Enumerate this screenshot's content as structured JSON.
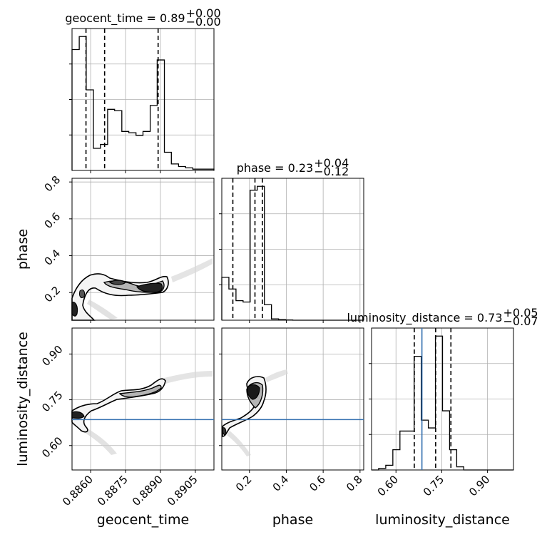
{
  "chart_data": {
    "type": "corner",
    "parameters": [
      "geocent_time",
      "phase",
      "luminosity_distance"
    ],
    "axis_ranges": {
      "geocent_time": [
        0.8852,
        0.8913
      ],
      "phase": [
        0.05,
        0.82
      ],
      "luminosity_distance": [
        0.52,
        0.985
      ]
    },
    "ticks": {
      "geocent_time": [
        "0.8860",
        "0.8875",
        "0.8890",
        "0.8905"
      ],
      "phase": [
        "0.2",
        "0.4",
        "0.6",
        "0.8"
      ],
      "luminosity_distance": [
        "0.60",
        "0.75",
        "0.90"
      ]
    },
    "tick_values": {
      "geocent_time": [
        0.886,
        0.8875,
        0.889,
        0.8905
      ],
      "phase": [
        0.2,
        0.4,
        0.6,
        0.8
      ],
      "luminosity_distance": [
        0.6,
        0.75,
        0.9
      ]
    },
    "titles": [
      {
        "param": "geocent_time",
        "text": "geocent_time = 0.89",
        "plus": "+0.00",
        "minus": "−0.00"
      },
      {
        "param": "phase",
        "text": "phase = 0.23",
        "plus": "+0.04",
        "minus": "−0.12"
      },
      {
        "param": "luminosity_distance",
        "text": "luminosity_distance = 0.73",
        "plus": "+0.05",
        "minus": "−0.07"
      }
    ],
    "histograms": {
      "geocent_time": {
        "edges": [
          0.8852,
          0.88551,
          0.88581,
          0.88612,
          0.88642,
          0.88673,
          0.88703,
          0.88734,
          0.88764,
          0.88795,
          0.88825,
          0.88856,
          0.88886,
          0.88917,
          0.88947,
          0.88978,
          0.89008,
          0.89039,
          0.89069,
          0.891,
          0.8913
        ],
        "counts": [
          0.93,
          1.03,
          0.62,
          0.17,
          0.2,
          0.47,
          0.46,
          0.3,
          0.29,
          0.27,
          0.3,
          0.5,
          0.85,
          0.14,
          0.05,
          0.03,
          0.02,
          0.01,
          0.01,
          0.01
        ],
        "quantiles": [
          0.8858,
          0.8866,
          0.8889
        ]
      },
      "phase": {
        "edges": [
          0.05,
          0.0885,
          0.127,
          0.1655,
          0.204,
          0.2425,
          0.281,
          0.3195,
          0.358,
          0.3965,
          0.435,
          0.4735,
          0.512,
          0.5505,
          0.589,
          0.6275,
          0.666,
          0.7045,
          0.743,
          0.7815,
          0.82
        ],
        "counts": [
          0.33,
          0.24,
          0.15,
          0.14,
          1.0,
          1.03,
          0.12,
          0.01,
          0.005,
          0.002,
          0,
          0,
          0,
          0,
          0,
          0,
          0,
          0,
          0,
          0
        ],
        "quantiles": [
          0.11,
          0.23,
          0.27
        ]
      },
      "luminosity_distance": {
        "edges": [
          0.52,
          0.54325,
          0.5665,
          0.58975,
          0.613,
          0.63625,
          0.6595,
          0.68275,
          0.706,
          0.72925,
          0.7525,
          0.77575,
          0.799,
          0.82225,
          0.8455,
          0.86875,
          0.892,
          0.91525,
          0.9385,
          0.96175,
          0.985
        ],
        "counts": [
          0,
          0.01,
          0.03,
          0.13,
          0.25,
          0.25,
          0.73,
          0.32,
          0.27,
          0.86,
          0.38,
          0.13,
          0.02,
          0,
          0,
          0,
          0,
          0,
          0,
          0
        ],
        "quantiles": [
          0.66,
          0.73,
          0.78
        ]
      }
    },
    "truths": {
      "luminosity_distance": 0.685
    },
    "grid": true
  }
}
